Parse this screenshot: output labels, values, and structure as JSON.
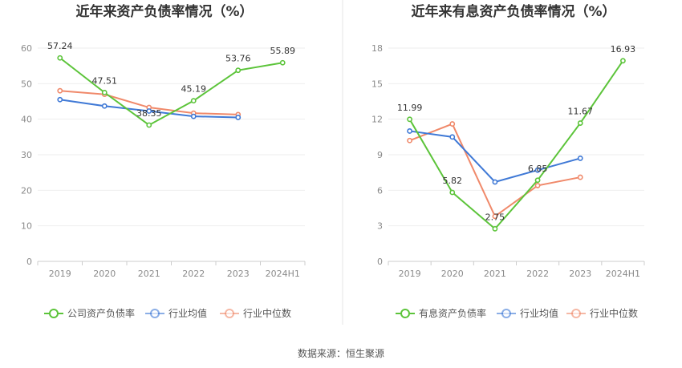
{
  "chart_data": [
    {
      "type": "line",
      "title": "近年来资产负债率情况（%）",
      "categories": [
        "2019",
        "2020",
        "2021",
        "2022",
        "2023",
        "2024H1"
      ],
      "ylim": [
        0,
        60
      ],
      "yticks": [
        0,
        10,
        20,
        30,
        40,
        50,
        60
      ],
      "series": [
        {
          "name": "公司资产负债率",
          "color": "#5cc43a",
          "values": [
            57.24,
            47.51,
            38.35,
            45.19,
            53.76,
            55.89
          ],
          "labels": [
            "57.24",
            "47.51",
            "38.35",
            "45.19",
            "53.76",
            "55.89"
          ]
        },
        {
          "name": "行业均值",
          "color": "#3f79d6",
          "values": [
            45.5,
            43.7,
            42.3,
            40.8,
            40.5,
            null
          ],
          "labels": []
        },
        {
          "name": "行业中位数",
          "color": "#f0896a",
          "values": [
            48.0,
            47.0,
            43.3,
            41.7,
            41.3,
            null
          ],
          "labels": []
        }
      ]
    },
    {
      "type": "line",
      "title": "近年来有息资产负债率情况（%）",
      "categories": [
        "2019",
        "2020",
        "2021",
        "2022",
        "2023",
        "2024H1"
      ],
      "ylim": [
        0,
        18
      ],
      "yticks": [
        0,
        3,
        6,
        9,
        12,
        15,
        18
      ],
      "series": [
        {
          "name": "有息资产负债率",
          "color": "#5cc43a",
          "values": [
            11.99,
            5.82,
            2.75,
            6.85,
            11.67,
            16.93
          ],
          "labels": [
            "11.99",
            "5.82",
            "2.75",
            "6.85",
            "11.67",
            "16.93"
          ]
        },
        {
          "name": "行业均值",
          "color": "#3f79d6",
          "values": [
            11.0,
            10.5,
            6.7,
            7.7,
            8.7,
            null
          ],
          "labels": []
        },
        {
          "name": "行业中位数",
          "color": "#f0896a",
          "values": [
            10.2,
            11.6,
            3.8,
            6.4,
            7.1,
            null
          ],
          "labels": []
        }
      ]
    }
  ],
  "source_text": "数据来源：恒生聚源"
}
